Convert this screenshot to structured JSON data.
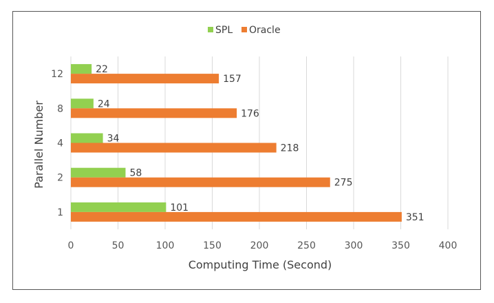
{
  "chart_data": {
    "type": "bar",
    "orientation": "horizontal",
    "categories": [
      "1",
      "2",
      "4",
      "8",
      "12"
    ],
    "series": [
      {
        "name": "SPL",
        "values": [
          101,
          58,
          34,
          24,
          22
        ],
        "color": "#92d050"
      },
      {
        "name": "Oracle",
        "values": [
          351,
          275,
          218,
          176,
          157
        ],
        "color": "#ed7d31"
      }
    ],
    "xlabel": "Computing Time (Second)",
    "ylabel": "Parallel Number",
    "xlim": [
      0,
      400
    ],
    "xticks": [
      0,
      50,
      100,
      150,
      200,
      250,
      300,
      350,
      400
    ],
    "grid": "vertical",
    "legend_position": "top-center"
  }
}
